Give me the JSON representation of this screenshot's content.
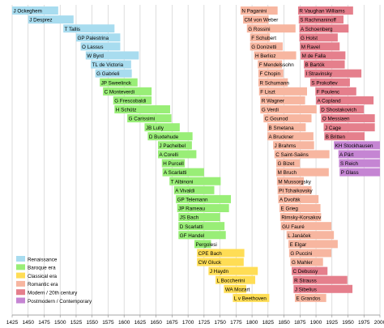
{
  "chart_data": {
    "type": "timeline",
    "x_ticks": [
      1425,
      1450,
      1475,
      1500,
      1525,
      1550,
      1575,
      1600,
      1625,
      1650,
      1675,
      1700,
      1725,
      1750,
      1775,
      1800,
      1825,
      1850,
      1875,
      1900,
      1925,
      1950,
      1975,
      2000
    ],
    "xlim": [
      1425,
      2000
    ],
    "grid": true,
    "legend_position": "bottom-left",
    "eras": [
      {
        "key": "renaissance",
        "label": "Renaissance",
        "color": "#a8dcef"
      },
      {
        "key": "baroque",
        "label": "Baroque era",
        "color": "#99ee77"
      },
      {
        "key": "classical",
        "label": "Classical era",
        "color": "#ffdd55"
      },
      {
        "key": "romantic",
        "label": "Romantic era",
        "color": "#f7b6a0"
      },
      {
        "key": "modern",
        "label": "Modern / 20th century",
        "color": "#e57f8c"
      },
      {
        "key": "postmodern",
        "label": "Postmodern / Contemporary",
        "color": "#c585d3"
      }
    ],
    "columns": [
      {
        "composers": [
          {
            "name": "J Ockeghem",
            "start": 1410,
            "end": 1497,
            "era": "renaissance"
          },
          {
            "name": "J Desprez",
            "start": 1450,
            "end": 1521,
            "era": "renaissance"
          },
          {
            "name": "T Tallis",
            "start": 1505,
            "end": 1585,
            "era": "renaissance"
          },
          {
            "name": "GP Palestrina",
            "start": 1525,
            "end": 1594,
            "era": "renaissance"
          },
          {
            "name": "O Lassus",
            "start": 1532,
            "end": 1594,
            "era": "renaissance"
          },
          {
            "name": "W Byrd",
            "start": 1540,
            "end": 1623,
            "era": "renaissance"
          },
          {
            "name": "TL de Victoria",
            "start": 1548,
            "end": 1611,
            "era": "renaissance"
          },
          {
            "name": "G Gabrieli",
            "start": 1555,
            "end": 1612,
            "era": "renaissance"
          },
          {
            "name": "JP Sweelinck",
            "start": 1562,
            "end": 1621,
            "era": "baroque"
          },
          {
            "name": "C Monteverdi",
            "start": 1567,
            "end": 1643,
            "era": "baroque"
          },
          {
            "name": "G Frescobaldi",
            "start": 1583,
            "end": 1643,
            "era": "baroque"
          },
          {
            "name": "H Schütz",
            "start": 1585,
            "end": 1672,
            "era": "baroque"
          },
          {
            "name": "G Carissimi",
            "start": 1605,
            "end": 1674,
            "era": "baroque"
          },
          {
            "name": "JB Lully",
            "start": 1632,
            "end": 1687,
            "era": "baroque"
          },
          {
            "name": "D Buxtehude",
            "start": 1637,
            "end": 1707,
            "era": "baroque"
          },
          {
            "name": "J Pachelbel",
            "start": 1653,
            "end": 1706,
            "era": "baroque"
          },
          {
            "name": "A Corelli",
            "start": 1653,
            "end": 1713,
            "era": "baroque"
          },
          {
            "name": "H Purcell",
            "start": 1659,
            "end": 1695,
            "era": "baroque"
          },
          {
            "name": "A Scarlatti",
            "start": 1660,
            "end": 1725,
            "era": "baroque"
          },
          {
            "name": "T Albinoni",
            "start": 1671,
            "end": 1751,
            "era": "baroque"
          },
          {
            "name": "A Vivaldi",
            "start": 1678,
            "end": 1741,
            "era": "baroque"
          },
          {
            "name": "GP Telemann",
            "start": 1681,
            "end": 1767,
            "era": "baroque"
          },
          {
            "name": "JP Rameau",
            "start": 1683,
            "end": 1764,
            "era": "baroque"
          },
          {
            "name": "JS Bach",
            "start": 1685,
            "end": 1750,
            "era": "baroque"
          },
          {
            "name": "D Scarlatti",
            "start": 1685,
            "end": 1757,
            "era": "baroque"
          },
          {
            "name": "GF Handel",
            "start": 1685,
            "end": 1759,
            "era": "baroque"
          },
          {
            "name": "Pergolesi",
            "start": 1710,
            "end": 1736,
            "era": "baroque"
          },
          {
            "name": "CPE Bach",
            "start": 1714,
            "end": 1788,
            "era": "classical"
          },
          {
            "name": "CW Gluck",
            "start": 1714,
            "end": 1787,
            "era": "classical"
          },
          {
            "name": "J Haydn",
            "start": 1732,
            "end": 1809,
            "era": "classical"
          },
          {
            "name": "L Boccherini",
            "start": 1743,
            "end": 1805,
            "era": "classical"
          },
          {
            "name": "WA Mozart",
            "start": 1756,
            "end": 1791,
            "era": "classical"
          },
          {
            "name": "L v Beethoven",
            "start": 1770,
            "end": 1827,
            "era": "classical"
          }
        ]
      },
      {
        "composers": [
          {
            "name": "N Paganini",
            "start": 1782,
            "end": 1840,
            "era": "romantic"
          },
          {
            "name": "CM von Weber",
            "start": 1786,
            "end": 1826,
            "era": "romantic"
          },
          {
            "name": "G Rossini",
            "start": 1792,
            "end": 1868,
            "era": "romantic"
          },
          {
            "name": "F Schubert",
            "start": 1797,
            "end": 1828,
            "era": "romantic"
          },
          {
            "name": "G Donizetti",
            "start": 1797,
            "end": 1848,
            "era": "romantic"
          },
          {
            "name": "H Berlioz",
            "start": 1803,
            "end": 1869,
            "era": "romantic"
          },
          {
            "name": "F Mendelssohn",
            "start": 1809,
            "end": 1847,
            "era": "romantic"
          },
          {
            "name": "F Chopin",
            "start": 1810,
            "end": 1849,
            "era": "romantic"
          },
          {
            "name": "R Schumann",
            "start": 1810,
            "end": 1856,
            "era": "romantic"
          },
          {
            "name": "F Liszt",
            "start": 1811,
            "end": 1886,
            "era": "romantic"
          },
          {
            "name": "R Wagner",
            "start": 1813,
            "end": 1883,
            "era": "romantic"
          },
          {
            "name": "G Verdi",
            "start": 1813,
            "end": 1901,
            "era": "romantic"
          },
          {
            "name": "C Gounod",
            "start": 1818,
            "end": 1893,
            "era": "romantic"
          },
          {
            "name": "B Smetana",
            "start": 1824,
            "end": 1884,
            "era": "romantic"
          },
          {
            "name": "A Bruckner",
            "start": 1824,
            "end": 1896,
            "era": "romantic"
          },
          {
            "name": "J Brahms",
            "start": 1833,
            "end": 1897,
            "era": "romantic"
          },
          {
            "name": "C Saint-Saëns",
            "start": 1835,
            "end": 1921,
            "era": "romantic"
          },
          {
            "name": "G Bizet",
            "start": 1838,
            "end": 1875,
            "era": "romantic"
          },
          {
            "name": "M Bruch",
            "start": 1838,
            "end": 1920,
            "era": "romantic"
          },
          {
            "name": "M Mussorgsky",
            "start": 1839,
            "end": 1881,
            "era": "romantic"
          },
          {
            "name": "PI Tchaikovsky",
            "start": 1840,
            "end": 1893,
            "era": "romantic"
          },
          {
            "name": "A Dvořák",
            "start": 1841,
            "end": 1904,
            "era": "romantic"
          },
          {
            "name": "E Grieg",
            "start": 1843,
            "end": 1907,
            "era": "romantic"
          },
          {
            "name": "Rimsky-Korsakov",
            "start": 1844,
            "end": 1908,
            "era": "romantic"
          },
          {
            "name": "GU Fauré",
            "start": 1845,
            "end": 1924,
            "era": "romantic"
          },
          {
            "name": "L Janáček",
            "start": 1854,
            "end": 1928,
            "era": "romantic"
          },
          {
            "name": "E Elgar",
            "start": 1857,
            "end": 1934,
            "era": "romantic"
          },
          {
            "name": "G Puccini",
            "start": 1858,
            "end": 1924,
            "era": "romantic"
          },
          {
            "name": "G Mahler",
            "start": 1860,
            "end": 1911,
            "era": "romantic"
          },
          {
            "name": "C Debussy",
            "start": 1862,
            "end": 1918,
            "era": "modern"
          },
          {
            "name": "R Strauss",
            "start": 1864,
            "end": 1949,
            "era": "modern"
          },
          {
            "name": "J Sibelius",
            "start": 1865,
            "end": 1957,
            "era": "modern"
          },
          {
            "name": "E Grandos",
            "start": 1867,
            "end": 1916,
            "era": "romantic"
          }
        ]
      },
      {
        "composers": [
          {
            "name": "R Vaughan Williams",
            "start": 1872,
            "end": 1958,
            "era": "modern"
          },
          {
            "name": "S Rachmaninoff",
            "start": 1873,
            "end": 1943,
            "era": "modern"
          },
          {
            "name": "A Schoenberg",
            "start": 1874,
            "end": 1951,
            "era": "modern"
          },
          {
            "name": "G Holst",
            "start": 1874,
            "end": 1934,
            "era": "modern"
          },
          {
            "name": "M Ravel",
            "start": 1875,
            "end": 1937,
            "era": "modern"
          },
          {
            "name": "M de Falla",
            "start": 1876,
            "end": 1946,
            "era": "modern"
          },
          {
            "name": "B Bartók",
            "start": 1881,
            "end": 1945,
            "era": "modern"
          },
          {
            "name": "I Stravinsky",
            "start": 1882,
            "end": 1971,
            "era": "modern"
          },
          {
            "name": "S Prokofiev",
            "start": 1891,
            "end": 1953,
            "era": "modern"
          },
          {
            "name": "F Poulenc",
            "start": 1899,
            "end": 1963,
            "era": "modern"
          },
          {
            "name": "A Copland",
            "start": 1900,
            "end": 1990,
            "era": "modern"
          },
          {
            "name": "D Shostakovich",
            "start": 1906,
            "end": 1975,
            "era": "modern"
          },
          {
            "name": "O Messiaen",
            "start": 1908,
            "end": 1992,
            "era": "modern"
          },
          {
            "name": "J Cage",
            "start": 1912,
            "end": 1992,
            "era": "modern"
          },
          {
            "name": "B Britten",
            "start": 1913,
            "end": 1976,
            "era": "modern"
          },
          {
            "name": "KH Stockhausen",
            "start": 1928,
            "end": 2007,
            "era": "postmodern"
          },
          {
            "name": "A Pärt",
            "start": 1935,
            "end": 2005,
            "era": "postmodern"
          },
          {
            "name": "S Reich",
            "start": 1936,
            "end": 2005,
            "era": "postmodern"
          },
          {
            "name": "P Glass",
            "start": 1937,
            "end": 2005,
            "era": "postmodern"
          }
        ]
      }
    ]
  }
}
